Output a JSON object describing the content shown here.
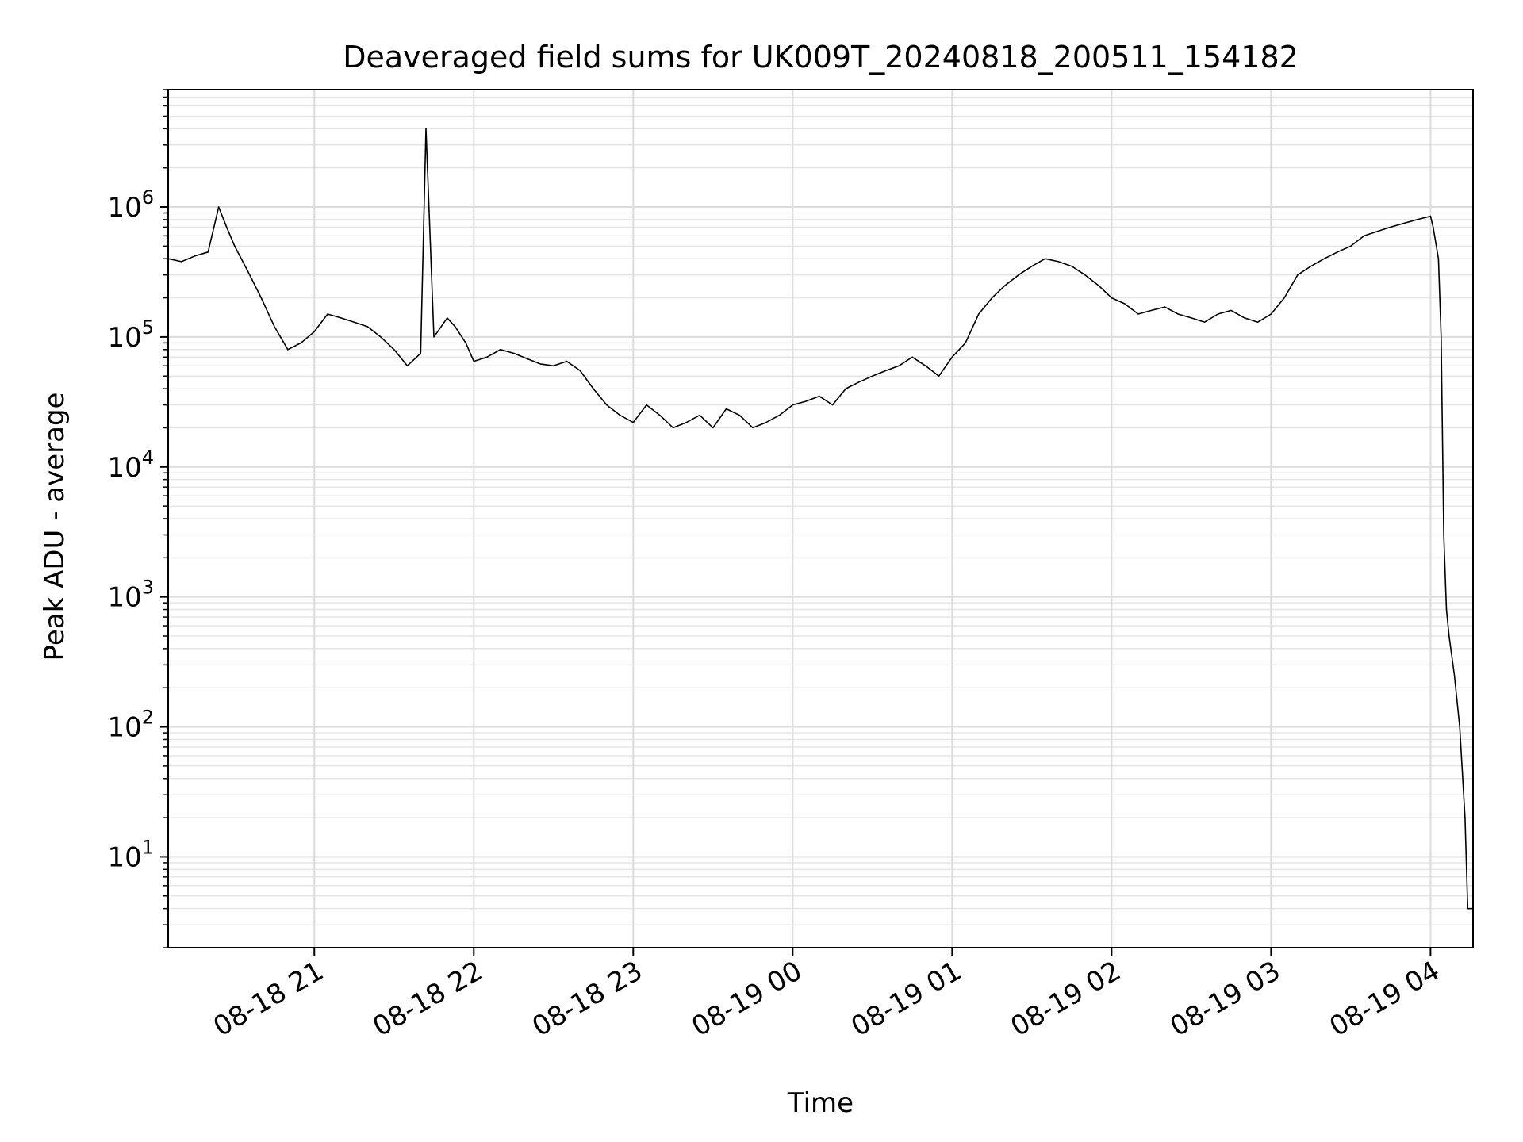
{
  "chart_data": {
    "type": "line",
    "title": "Deaveraged field sums for UK009T_20240818_200511_154182",
    "xlabel": "Time",
    "ylabel": "Peak ADU - average",
    "yscale": "log",
    "ylim": [
      2,
      8000000
    ],
    "xlim": [
      "2024-08-18 20:05",
      "2024-08-19 04:16"
    ],
    "grid": true,
    "grid_which": "both",
    "legend": "none",
    "line_color": "#000000",
    "x_ticks": [
      {
        "value": "2024-08-18 21:00",
        "label": "08-18 21"
      },
      {
        "value": "2024-08-18 22:00",
        "label": "08-18 22"
      },
      {
        "value": "2024-08-18 23:00",
        "label": "08-18 23"
      },
      {
        "value": "2024-08-19 00:00",
        "label": "08-19 00"
      },
      {
        "value": "2024-08-19 01:00",
        "label": "08-19 01"
      },
      {
        "value": "2024-08-19 02:00",
        "label": "08-19 02"
      },
      {
        "value": "2024-08-19 03:00",
        "label": "08-19 03"
      },
      {
        "value": "2024-08-19 04:00",
        "label": "08-19 04"
      }
    ],
    "y_ticks": [
      {
        "value": 10,
        "base": "10",
        "exp": "1"
      },
      {
        "value": 100,
        "base": "10",
        "exp": "2"
      },
      {
        "value": 1000,
        "base": "10",
        "exp": "3"
      },
      {
        "value": 10000,
        "base": "10",
        "exp": "4"
      },
      {
        "value": 100000,
        "base": "10",
        "exp": "5"
      },
      {
        "value": 1000000,
        "base": "10",
        "exp": "6"
      }
    ],
    "series": [
      {
        "x": [
          "2024-08-18 20:05",
          "2024-08-18 20:10",
          "2024-08-18 20:15",
          "2024-08-18 20:20",
          "2024-08-18 20:24",
          "2024-08-18 20:27",
          "2024-08-18 20:30",
          "2024-08-18 20:35",
          "2024-08-18 20:40",
          "2024-08-18 20:45",
          "2024-08-18 20:50",
          "2024-08-18 20:55",
          "2024-08-18 21:00",
          "2024-08-18 21:05",
          "2024-08-18 21:10",
          "2024-08-18 21:15",
          "2024-08-18 21:20",
          "2024-08-18 21:25",
          "2024-08-18 21:30",
          "2024-08-18 21:35",
          "2024-08-18 21:40",
          "2024-08-18 21:42",
          "2024-08-18 21:45",
          "2024-08-18 21:50",
          "2024-08-18 21:53",
          "2024-08-18 21:57",
          "2024-08-18 22:00",
          "2024-08-18 22:05",
          "2024-08-18 22:10",
          "2024-08-18 22:15",
          "2024-08-18 22:20",
          "2024-08-18 22:25",
          "2024-08-18 22:30",
          "2024-08-18 22:35",
          "2024-08-18 22:40",
          "2024-08-18 22:45",
          "2024-08-18 22:50",
          "2024-08-18 22:55",
          "2024-08-18 23:00",
          "2024-08-18 23:05",
          "2024-08-18 23:10",
          "2024-08-18 23:15",
          "2024-08-18 23:20",
          "2024-08-18 23:25",
          "2024-08-18 23:30",
          "2024-08-18 23:35",
          "2024-08-18 23:40",
          "2024-08-18 23:45",
          "2024-08-18 23:50",
          "2024-08-18 23:55",
          "2024-08-19 00:00",
          "2024-08-19 00:05",
          "2024-08-19 00:10",
          "2024-08-19 00:15",
          "2024-08-19 00:20",
          "2024-08-19 00:25",
          "2024-08-19 00:30",
          "2024-08-19 00:35",
          "2024-08-19 00:40",
          "2024-08-19 00:45",
          "2024-08-19 00:50",
          "2024-08-19 00:55",
          "2024-08-19 01:00",
          "2024-08-19 01:05",
          "2024-08-19 01:10",
          "2024-08-19 01:15",
          "2024-08-19 01:20",
          "2024-08-19 01:25",
          "2024-08-19 01:30",
          "2024-08-19 01:35",
          "2024-08-19 01:40",
          "2024-08-19 01:45",
          "2024-08-19 01:50",
          "2024-08-19 01:55",
          "2024-08-19 02:00",
          "2024-08-19 02:05",
          "2024-08-19 02:10",
          "2024-08-19 02:15",
          "2024-08-19 02:20",
          "2024-08-19 02:25",
          "2024-08-19 02:30",
          "2024-08-19 02:35",
          "2024-08-19 02:40",
          "2024-08-19 02:45",
          "2024-08-19 02:50",
          "2024-08-19 02:55",
          "2024-08-19 03:00",
          "2024-08-19 03:05",
          "2024-08-19 03:10",
          "2024-08-19 03:15",
          "2024-08-19 03:20",
          "2024-08-19 03:25",
          "2024-08-19 03:30",
          "2024-08-19 03:35",
          "2024-08-19 03:40",
          "2024-08-19 03:45",
          "2024-08-19 03:50",
          "2024-08-19 03:55",
          "2024-08-19 04:00",
          "2024-08-19 04:01",
          "2024-08-19 04:03",
          "2024-08-19 04:04",
          "2024-08-19 04:05",
          "2024-08-19 04:06",
          "2024-08-19 04:07",
          "2024-08-19 04:09",
          "2024-08-19 04:11",
          "2024-08-19 04:13",
          "2024-08-19 04:14",
          "2024-08-19 04:15",
          "2024-08-19 04:16"
        ],
        "y": [
          400000,
          380000,
          420000,
          450000,
          1000000,
          700000,
          500000,
          320000,
          200000,
          120000,
          80000,
          90000,
          110000,
          150000,
          140000,
          130000,
          120000,
          100000,
          80000,
          60000,
          75000,
          4000000,
          100000,
          140000,
          120000,
          90000,
          65000,
          70000,
          80000,
          75000,
          68000,
          62000,
          60000,
          65000,
          55000,
          40000,
          30000,
          25000,
          22000,
          30000,
          25000,
          20000,
          22000,
          25000,
          20000,
          28000,
          25000,
          20000,
          22000,
          25000,
          30000,
          32000,
          35000,
          30000,
          40000,
          45000,
          50000,
          55000,
          60000,
          70000,
          60000,
          50000,
          70000,
          90000,
          150000,
          200000,
          250000,
          300000,
          350000,
          400000,
          380000,
          350000,
          300000,
          250000,
          200000,
          180000,
          150000,
          160000,
          170000,
          150000,
          140000,
          130000,
          150000,
          160000,
          140000,
          130000,
          150000,
          200000,
          300000,
          350000,
          400000,
          450000,
          500000,
          600000,
          650000,
          700000,
          750000,
          800000,
          850000,
          700000,
          400000,
          100000,
          3000,
          800,
          500,
          250,
          100,
          20,
          4,
          4,
          4
        ]
      }
    ]
  }
}
